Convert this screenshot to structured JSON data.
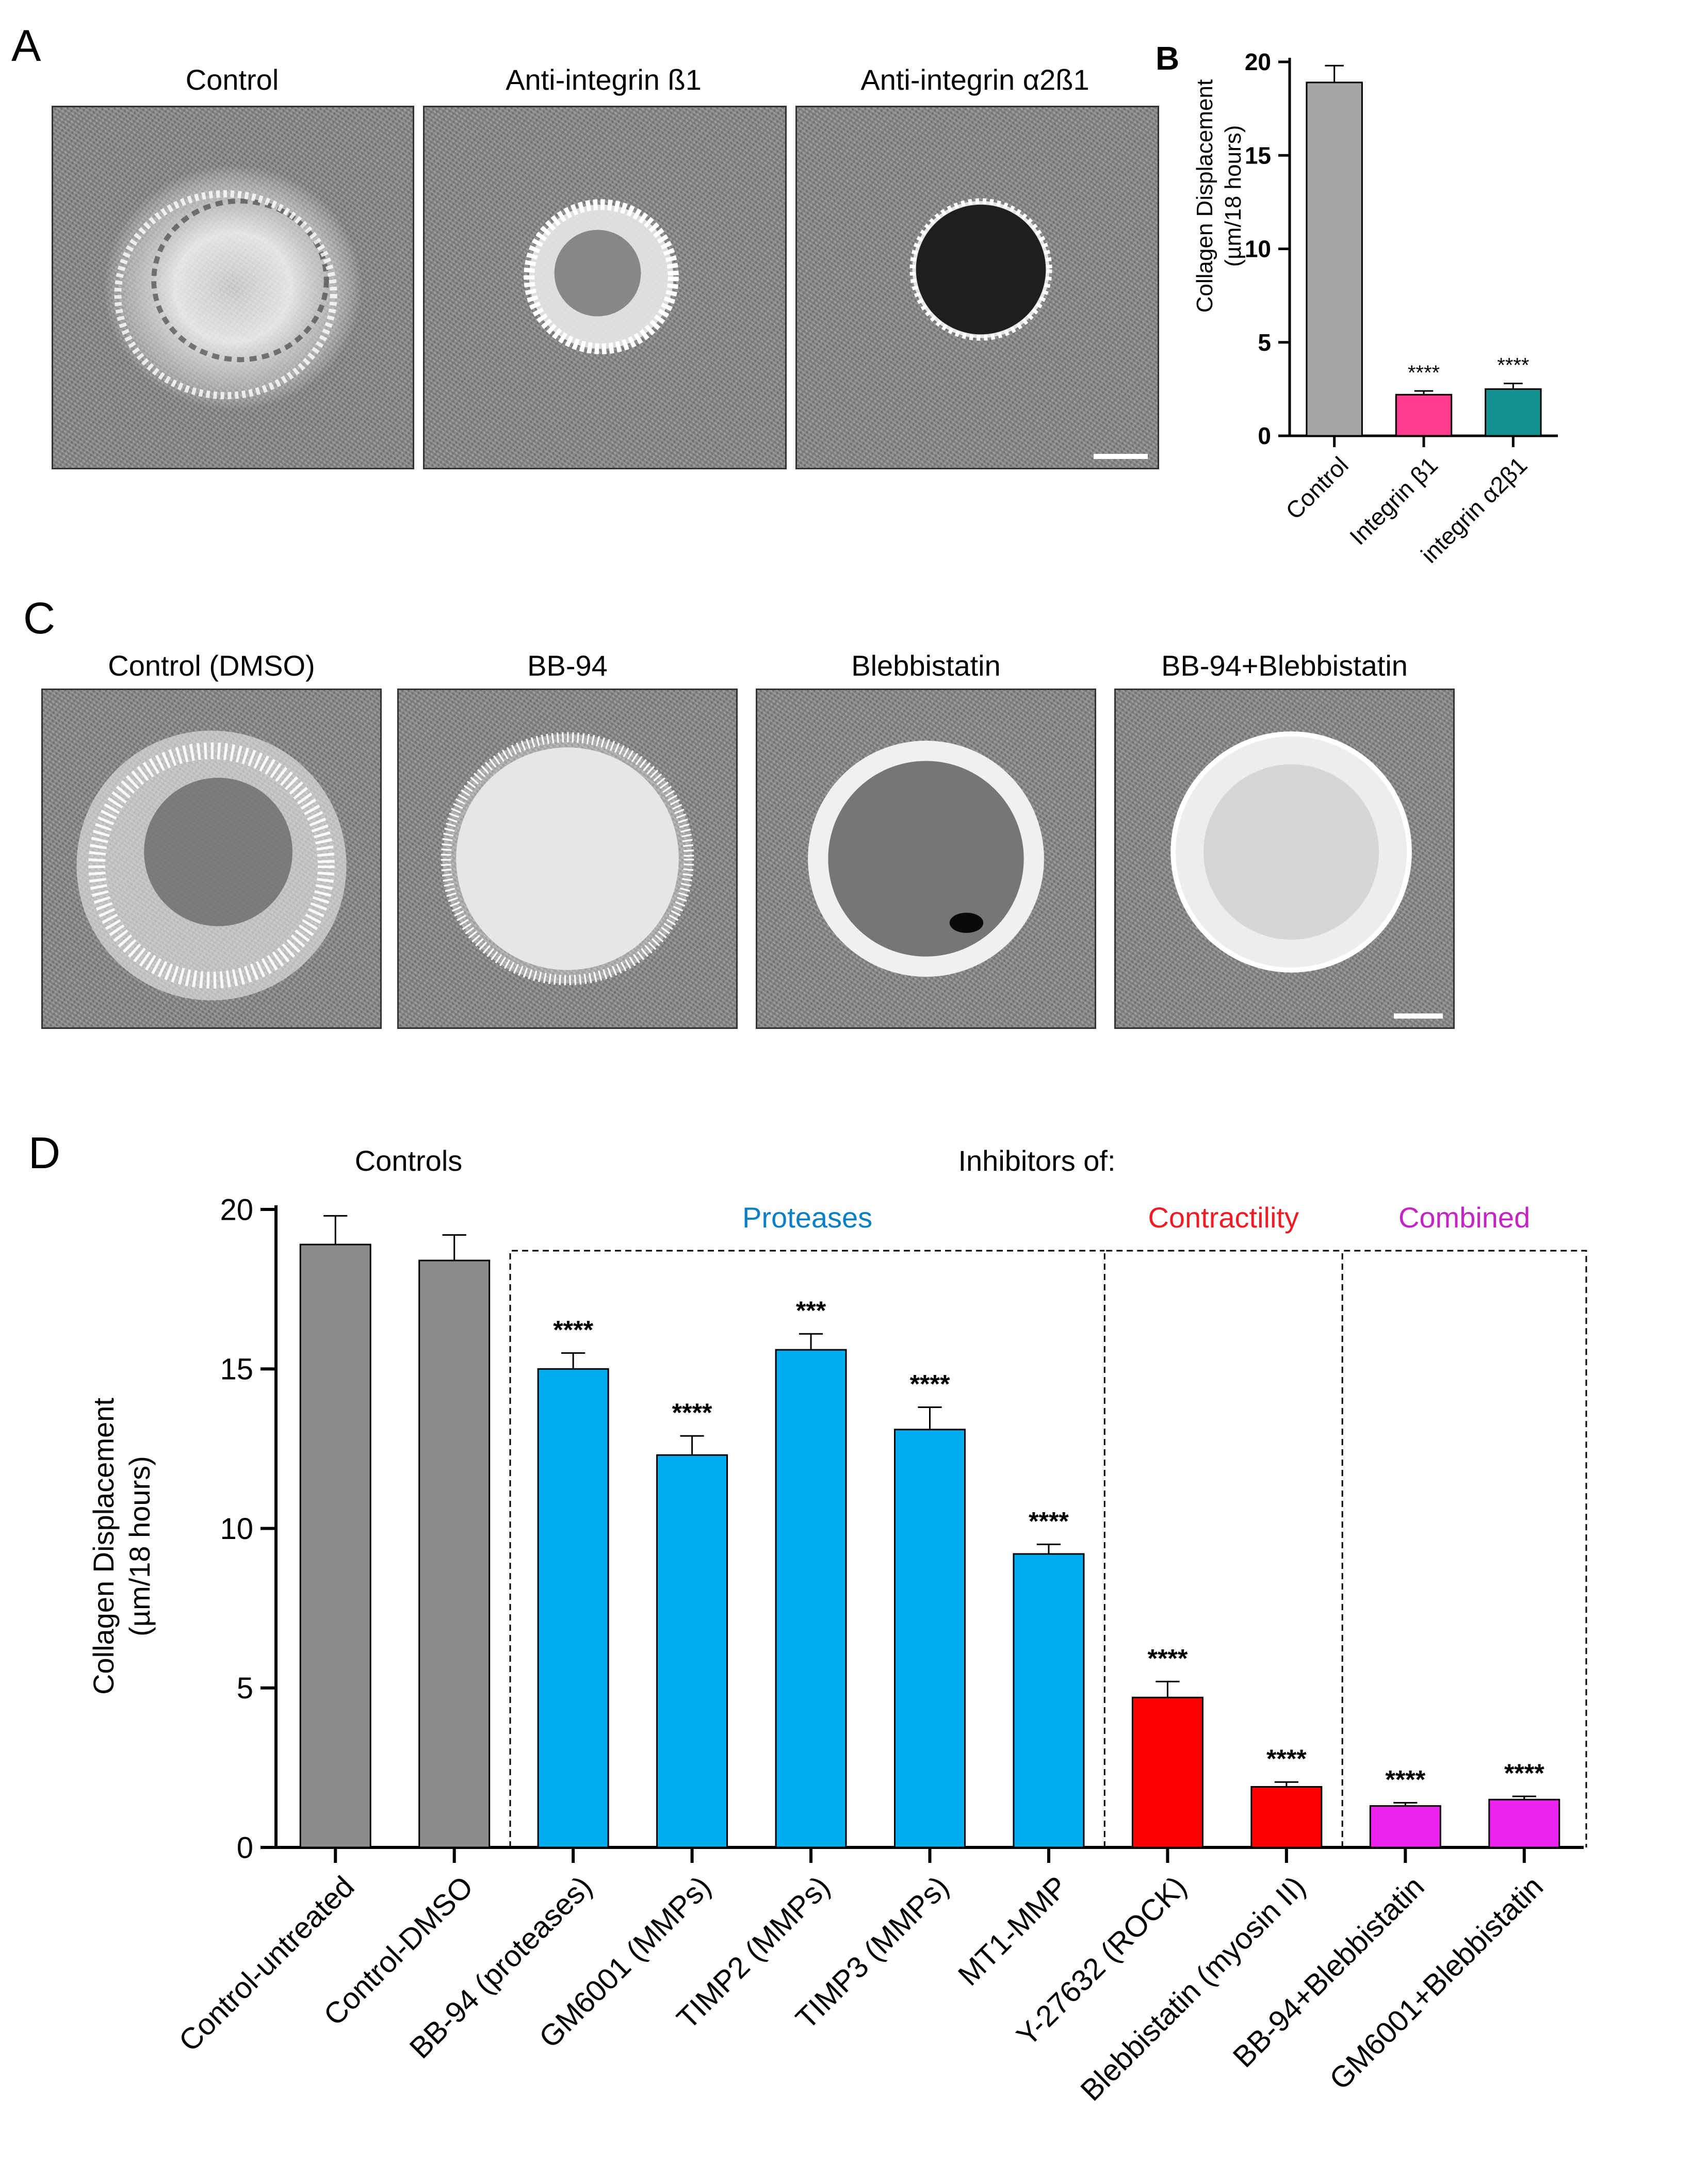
{
  "panels": {
    "A": {
      "letter": "A",
      "images": [
        {
          "title": "Control",
          "spheroid": "invasive-control"
        },
        {
          "title": "Anti-integrin ß1",
          "spheroid": "compact-bright-rim"
        },
        {
          "title": "Anti-integrin α2ß1",
          "spheroid": "compact-dark-core"
        }
      ]
    },
    "C": {
      "letter": "C",
      "images": [
        {
          "title": "Control (DMSO)",
          "spheroid": "invasive-dmso"
        },
        {
          "title": "BB-94",
          "spheroid": "bright-spiky"
        },
        {
          "title": "Blebbistatin",
          "spheroid": "dark-core-rim"
        },
        {
          "title": "BB-94+Blebbistatin",
          "spheroid": "bright-smooth"
        }
      ]
    }
  },
  "chart_data": [
    {
      "panel": "B",
      "type": "bar",
      "title": "",
      "xlabel": "",
      "ylabel": "Collagen Displacement",
      "ylabel_line2": "(µm/18 hours)",
      "ylim": [
        0,
        20
      ],
      "yticks": [
        0,
        5,
        10,
        15,
        20
      ],
      "categories": [
        "Control",
        "Integrin β1",
        "integrin α2β1"
      ],
      "values": [
        18.9,
        2.2,
        2.5
      ],
      "errors": [
        0.9,
        0.2,
        0.3
      ],
      "colors": [
        "#a6a6a6",
        "#ff3b8d",
        "#14918f"
      ],
      "significance": [
        "",
        "****",
        "****"
      ]
    },
    {
      "panel": "D",
      "type": "bar",
      "title": "",
      "xlabel": "",
      "ylabel": "Collagen Displacement",
      "ylabel_line2": "(µm/18 hours)",
      "ylim": [
        0,
        20
      ],
      "yticks": [
        0,
        5,
        10,
        15,
        20
      ],
      "group_headers": {
        "controls": "Controls",
        "inhibitors": "Inhibitors of:"
      },
      "groups": [
        {
          "label": "Proteases",
          "color": "#0a7fc4",
          "start": 2,
          "end": 6
        },
        {
          "label": "Contractility",
          "color": "#ee1c25",
          "start": 7,
          "end": 8
        },
        {
          "label": "Combined",
          "color": "#c225c2",
          "start": 9,
          "end": 10
        }
      ],
      "categories": [
        "Control-untreated",
        "Control-DMSO",
        "BB-94 (proteases)",
        "GM6001 (MMPs)",
        "TIMP2 (MMPs)",
        "TIMP3 (MMPs)",
        "MT1-MMP",
        "Y-27632 (ROCK)",
        "Blebbistatin (myosin II)",
        "BB-94+Blebbistatin",
        "GM6001+Blebbistatin"
      ],
      "values": [
        18.9,
        18.4,
        15.0,
        12.3,
        15.6,
        13.1,
        9.2,
        4.7,
        1.9,
        1.3,
        1.5
      ],
      "errors": [
        0.9,
        0.8,
        0.5,
        0.6,
        0.5,
        0.7,
        0.3,
        0.5,
        0.15,
        0.1,
        0.1
      ],
      "colors": [
        "#8c8c8c",
        "#8c8c8c",
        "#00aeef",
        "#00aeef",
        "#00aeef",
        "#00aeef",
        "#00aeef",
        "#ff0000",
        "#ff0000",
        "#ee22ee",
        "#ee22ee"
      ],
      "significance": [
        "",
        "",
        "****",
        "****",
        "***",
        "****",
        "****",
        "****",
        "****",
        "****",
        "****"
      ]
    }
  ]
}
